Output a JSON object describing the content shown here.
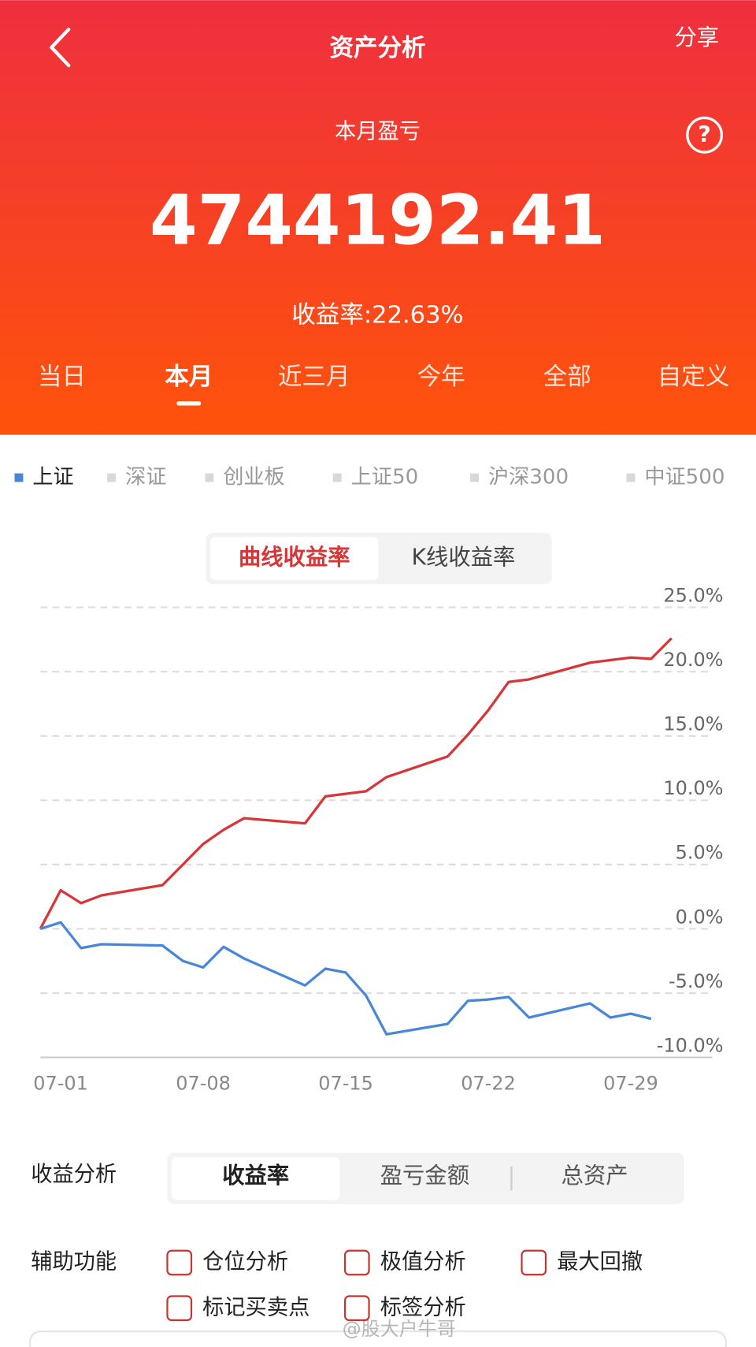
{
  "header": {
    "title": "资产分析",
    "share": "分享"
  },
  "summary": {
    "label": "本月盈亏",
    "amount": "4744192.41",
    "rate": "收益率:22.63%"
  },
  "period_tabs": {
    "items": [
      "当日",
      "本月",
      "近三月",
      "今年",
      "全部",
      "自定义"
    ],
    "selected": 1
  },
  "index_tabs": {
    "items": [
      "上证",
      "深证",
      "创业板",
      "上证50",
      "沪深300",
      "中证500"
    ],
    "selected": 0
  },
  "chart_toggle": {
    "items": [
      "曲线收益率",
      "K线收益率"
    ],
    "selected": 0
  },
  "chart_data": {
    "type": "line",
    "x": [
      0,
      1,
      2,
      3,
      6,
      7,
      8,
      9,
      10,
      13,
      14,
      15,
      16,
      17,
      20,
      21,
      22,
      23,
      24,
      27,
      28,
      29,
      30,
      31
    ],
    "series": [
      {
        "color": "#d63638",
        "values": [
          0,
          3.0,
          2.0,
          2.6,
          3.4,
          5.0,
          6.6,
          7.7,
          8.6,
          8.2,
          10.3,
          10.5,
          10.7,
          11.8,
          13.4,
          15.1,
          17.0,
          19.2,
          19.4,
          20.7,
          20.9,
          21.1,
          21.0,
          22.6
        ]
      },
      {
        "color": "#4a86d8",
        "values": [
          0,
          0.5,
          -1.5,
          -1.2,
          -1.3,
          -2.5,
          -3.0,
          -1.4,
          -2.3,
          -4.4,
          -3.1,
          -3.4,
          -5.2,
          -8.2,
          -7.4,
          -5.6,
          -5.5,
          -5.3,
          -6.9,
          -5.8,
          -6.9,
          -6.6,
          -7.0,
          null
        ]
      }
    ],
    "xlim": [
      0,
      33
    ],
    "xticks": [
      {
        "value": 1,
        "label": "07-01"
      },
      {
        "value": 8,
        "label": "07-08"
      },
      {
        "value": 15,
        "label": "07-15"
      },
      {
        "value": 22,
        "label": "07-22"
      },
      {
        "value": 29,
        "label": "07-29"
      }
    ],
    "ylim": [
      -10,
      25
    ],
    "yticks": [
      {
        "value": 25,
        "label": "25.0%"
      },
      {
        "value": 20,
        "label": "20.0%"
      },
      {
        "value": 15,
        "label": "15.0%"
      },
      {
        "value": 10,
        "label": "10.0%"
      },
      {
        "value": 5,
        "label": "5.0%"
      },
      {
        "value": 0,
        "label": "0.0%"
      },
      {
        "value": -5,
        "label": "-5.0%"
      },
      {
        "value": -10,
        "label": "-10.0%"
      }
    ],
    "grid": true
  },
  "analysis": {
    "label": "收益分析",
    "items": [
      "收益率",
      "盈亏金额",
      "总资产"
    ],
    "selected": 0
  },
  "aux": {
    "label": "辅助功能",
    "items": [
      "仓位分析",
      "极值分析",
      "最大回撤",
      "标记买卖点",
      "标签分析"
    ]
  },
  "watermark": "@股大户牛哥"
}
